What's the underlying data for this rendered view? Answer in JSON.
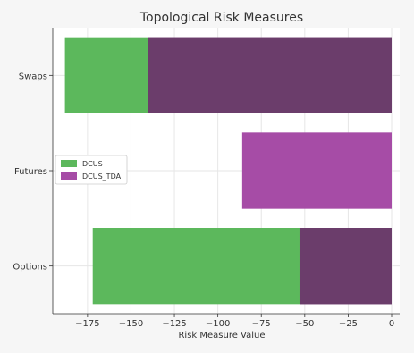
{
  "chart_data": {
    "type": "bar",
    "orientation": "horizontal",
    "title": "Topological Risk Measures",
    "xlabel": "Risk Measure Value",
    "ylabel": "",
    "categories": [
      "Options",
      "Futures",
      "Swaps"
    ],
    "series": [
      {
        "name": "DCUS",
        "values": [
          -172,
          null,
          -188
        ],
        "color": "#5cb85c"
      },
      {
        "name": "DCUS_TDA",
        "values": [
          -53,
          -86,
          -140
        ],
        "color": "#a64ca6"
      }
    ],
    "overlap_color": "#6b3d6b",
    "xlim": [
      -195,
      0
    ],
    "xticks": [
      -175,
      -150,
      -125,
      -100,
      -75,
      -50,
      -25,
      0
    ],
    "tick_labels": [
      "−175",
      "−150",
      "−125",
      "−100",
      "−75",
      "−50",
      "−25",
      "0"
    ],
    "grid": true,
    "legend_position": "center-left"
  }
}
